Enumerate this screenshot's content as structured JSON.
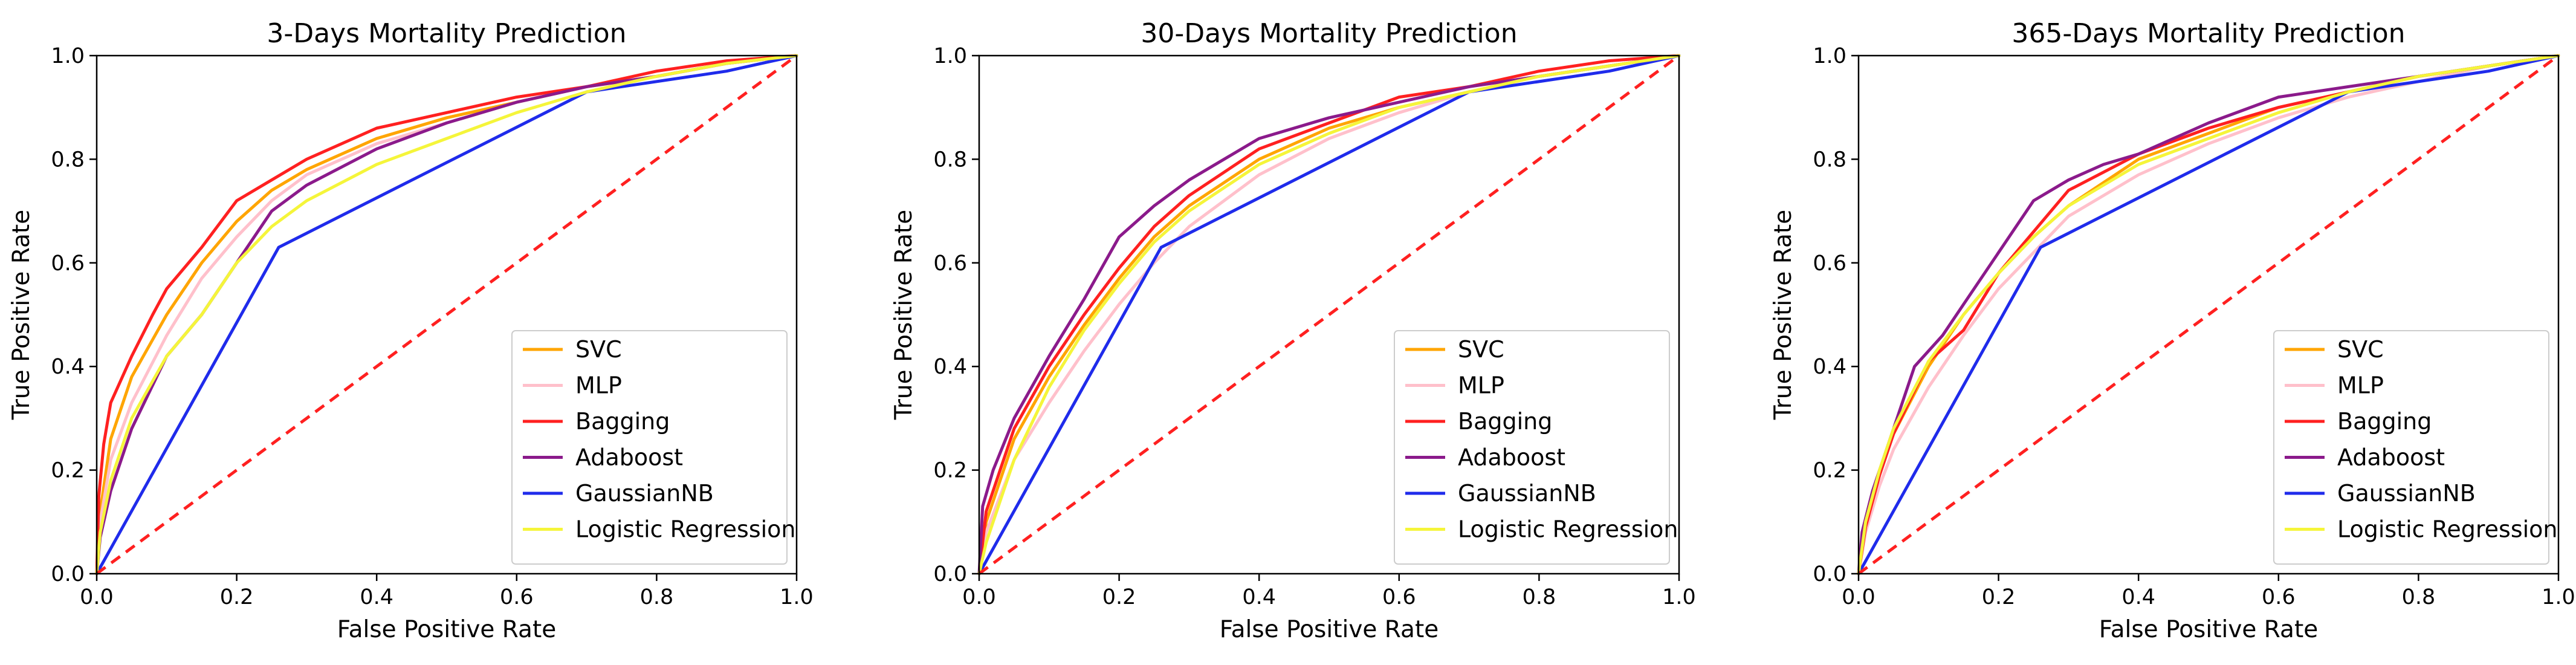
{
  "chart_data": [
    {
      "type": "line",
      "title": "3-Days Mortality Prediction",
      "xlabel": "False Positive Rate",
      "ylabel": "True Positive Rate",
      "xlim": [
        0,
        1
      ],
      "ylim": [
        0,
        1
      ],
      "xticks": [
        "0.0",
        "0.2",
        "0.4",
        "0.6",
        "0.8",
        "1.0"
      ],
      "yticks": [
        "0.0",
        "0.2",
        "0.4",
        "0.6",
        "0.8",
        "1.0"
      ],
      "grid": false,
      "legend_position": "bottom-right",
      "series": [
        {
          "name": "SVC",
          "color": "#FFA500",
          "x": [
            0,
            0.005,
            0.02,
            0.05,
            0.1,
            0.15,
            0.2,
            0.25,
            0.3,
            0.4,
            0.5,
            0.6,
            0.7,
            0.8,
            0.9,
            1.0
          ],
          "y": [
            0,
            0.12,
            0.26,
            0.38,
            0.5,
            0.6,
            0.68,
            0.74,
            0.78,
            0.84,
            0.88,
            0.91,
            0.94,
            0.96,
            0.985,
            1.0
          ]
        },
        {
          "name": "MLP",
          "color": "#FFC0CB",
          "x": [
            0,
            0.005,
            0.02,
            0.05,
            0.1,
            0.15,
            0.2,
            0.25,
            0.3,
            0.4,
            0.5,
            0.6,
            0.7,
            0.8,
            0.9,
            1.0
          ],
          "y": [
            0,
            0.1,
            0.22,
            0.33,
            0.46,
            0.57,
            0.65,
            0.72,
            0.77,
            0.83,
            0.87,
            0.91,
            0.94,
            0.96,
            0.985,
            1.0
          ]
        },
        {
          "name": "Bagging",
          "color": "#FF2020",
          "x": [
            0,
            0.003,
            0.01,
            0.02,
            0.05,
            0.08,
            0.1,
            0.15,
            0.2,
            0.25,
            0.3,
            0.4,
            0.5,
            0.6,
            0.7,
            0.8,
            0.9,
            1.0
          ],
          "y": [
            0,
            0.15,
            0.25,
            0.33,
            0.42,
            0.5,
            0.55,
            0.63,
            0.72,
            0.76,
            0.8,
            0.86,
            0.89,
            0.92,
            0.94,
            0.97,
            0.99,
            1.0
          ]
        },
        {
          "name": "Adaboost",
          "color": "#8B1A8B",
          "x": [
            0,
            0.005,
            0.02,
            0.05,
            0.1,
            0.15,
            0.2,
            0.25,
            0.3,
            0.4,
            0.5,
            0.6,
            0.7,
            0.8,
            0.9,
            1.0
          ],
          "y": [
            0,
            0.07,
            0.16,
            0.28,
            0.42,
            0.5,
            0.6,
            0.7,
            0.75,
            0.82,
            0.87,
            0.91,
            0.94,
            0.96,
            0.985,
            1.0
          ]
        },
        {
          "name": "GaussianNB",
          "color": "#1F2BEB",
          "x": [
            0,
            0.26,
            0.7,
            0.9,
            1.0
          ],
          "y": [
            0,
            0.63,
            0.93,
            0.97,
            1.0
          ]
        },
        {
          "name": "Logistic Regression",
          "color": "#F5F53A",
          "x": [
            0,
            0.005,
            0.02,
            0.05,
            0.1,
            0.15,
            0.2,
            0.25,
            0.3,
            0.4,
            0.5,
            0.6,
            0.7,
            0.8,
            0.9,
            1.0
          ],
          "y": [
            0,
            0.08,
            0.18,
            0.3,
            0.42,
            0.5,
            0.6,
            0.67,
            0.72,
            0.79,
            0.84,
            0.89,
            0.93,
            0.96,
            0.985,
            1.0
          ]
        }
      ]
    },
    {
      "type": "line",
      "title": "30-Days Mortality Prediction",
      "xlabel": "False Positive Rate",
      "ylabel": "True Positive Rate",
      "xlim": [
        0,
        1
      ],
      "ylim": [
        0,
        1
      ],
      "xticks": [
        "0.0",
        "0.2",
        "0.4",
        "0.6",
        "0.8",
        "1.0"
      ],
      "yticks": [
        "0.0",
        "0.2",
        "0.4",
        "0.6",
        "0.8",
        "1.0"
      ],
      "grid": false,
      "legend_position": "bottom-right",
      "series": [
        {
          "name": "SVC",
          "color": "#FFA500",
          "x": [
            0,
            0.01,
            0.03,
            0.05,
            0.1,
            0.15,
            0.2,
            0.25,
            0.3,
            0.4,
            0.5,
            0.6,
            0.7,
            0.8,
            0.9,
            1.0
          ],
          "y": [
            0,
            0.1,
            0.18,
            0.26,
            0.38,
            0.48,
            0.57,
            0.65,
            0.71,
            0.8,
            0.86,
            0.9,
            0.93,
            0.96,
            0.98,
            1.0
          ]
        },
        {
          "name": "MLP",
          "color": "#FFC0CB",
          "x": [
            0,
            0.01,
            0.03,
            0.05,
            0.1,
            0.15,
            0.2,
            0.25,
            0.3,
            0.4,
            0.5,
            0.6,
            0.7,
            0.8,
            0.9,
            1.0
          ],
          "y": [
            0,
            0.08,
            0.15,
            0.22,
            0.33,
            0.43,
            0.52,
            0.6,
            0.67,
            0.77,
            0.84,
            0.89,
            0.93,
            0.96,
            0.98,
            1.0
          ]
        },
        {
          "name": "Bagging",
          "color": "#FF2020",
          "x": [
            0,
            0.01,
            0.03,
            0.05,
            0.1,
            0.15,
            0.2,
            0.25,
            0.3,
            0.4,
            0.5,
            0.6,
            0.7,
            0.8,
            0.9,
            1.0
          ],
          "y": [
            0,
            0.12,
            0.2,
            0.28,
            0.4,
            0.5,
            0.59,
            0.67,
            0.73,
            0.82,
            0.87,
            0.92,
            0.94,
            0.97,
            0.99,
            1.0
          ]
        },
        {
          "name": "Adaboost",
          "color": "#8B1A8B",
          "x": [
            0,
            0.005,
            0.02,
            0.05,
            0.1,
            0.15,
            0.2,
            0.25,
            0.3,
            0.4,
            0.5,
            0.6,
            0.7,
            0.8,
            0.9,
            1.0
          ],
          "y": [
            0,
            0.13,
            0.2,
            0.3,
            0.42,
            0.53,
            0.65,
            0.71,
            0.76,
            0.84,
            0.88,
            0.91,
            0.94,
            0.96,
            0.98,
            1.0
          ]
        },
        {
          "name": "GaussianNB",
          "color": "#1F2BEB",
          "x": [
            0,
            0.26,
            0.7,
            0.9,
            1.0
          ],
          "y": [
            0,
            0.63,
            0.93,
            0.97,
            1.0
          ]
        },
        {
          "name": "Logistic Regression",
          "color": "#F5F53A",
          "x": [
            0,
            0.01,
            0.03,
            0.05,
            0.1,
            0.15,
            0.2,
            0.25,
            0.3,
            0.4,
            0.5,
            0.6,
            0.7,
            0.8,
            0.9,
            1.0
          ],
          "y": [
            0,
            0.06,
            0.14,
            0.22,
            0.36,
            0.47,
            0.56,
            0.64,
            0.7,
            0.79,
            0.85,
            0.9,
            0.93,
            0.96,
            0.98,
            1.0
          ]
        }
      ]
    },
    {
      "type": "line",
      "title": "365-Days Mortality Prediction",
      "xlabel": "False Positive Rate",
      "ylabel": "True Positive Rate",
      "xlim": [
        0,
        1
      ],
      "ylim": [
        0,
        1
      ],
      "xticks": [
        "0.0",
        "0.2",
        "0.4",
        "0.6",
        "0.8",
        "1.0"
      ],
      "yticks": [
        "0.0",
        "0.2",
        "0.4",
        "0.6",
        "0.8",
        "1.0"
      ],
      "grid": false,
      "legend_position": "bottom-right",
      "series": [
        {
          "name": "SVC",
          "color": "#FFA500",
          "x": [
            0,
            0.01,
            0.03,
            0.05,
            0.1,
            0.15,
            0.2,
            0.25,
            0.3,
            0.4,
            0.5,
            0.6,
            0.7,
            0.8,
            0.9,
            1.0
          ],
          "y": [
            0,
            0.1,
            0.2,
            0.27,
            0.4,
            0.5,
            0.58,
            0.65,
            0.71,
            0.8,
            0.85,
            0.9,
            0.93,
            0.96,
            0.98,
            1.0
          ]
        },
        {
          "name": "MLP",
          "color": "#FFC0CB",
          "x": [
            0,
            0.01,
            0.03,
            0.05,
            0.1,
            0.15,
            0.2,
            0.25,
            0.3,
            0.4,
            0.5,
            0.6,
            0.7,
            0.8,
            0.9,
            1.0
          ],
          "y": [
            0,
            0.08,
            0.17,
            0.24,
            0.36,
            0.46,
            0.55,
            0.62,
            0.69,
            0.77,
            0.83,
            0.88,
            0.92,
            0.95,
            0.98,
            1.0
          ]
        },
        {
          "name": "Bagging",
          "color": "#FF2020",
          "x": [
            0,
            0.01,
            0.03,
            0.05,
            0.1,
            0.15,
            0.2,
            0.25,
            0.3,
            0.4,
            0.5,
            0.6,
            0.7,
            0.8,
            0.9,
            1.0
          ],
          "y": [
            0,
            0.09,
            0.19,
            0.27,
            0.41,
            0.47,
            0.58,
            0.66,
            0.74,
            0.81,
            0.86,
            0.9,
            0.93,
            0.96,
            0.98,
            1.0
          ]
        },
        {
          "name": "Adaboost",
          "color": "#8B1A8B",
          "x": [
            0,
            0.005,
            0.02,
            0.05,
            0.08,
            0.12,
            0.15,
            0.2,
            0.25,
            0.3,
            0.35,
            0.4,
            0.5,
            0.6,
            0.7,
            0.8,
            0.9,
            1.0
          ],
          "y": [
            0,
            0.08,
            0.16,
            0.28,
            0.4,
            0.46,
            0.52,
            0.62,
            0.72,
            0.76,
            0.79,
            0.81,
            0.87,
            0.92,
            0.94,
            0.96,
            0.98,
            1.0
          ]
        },
        {
          "name": "GaussianNB",
          "color": "#1F2BEB",
          "x": [
            0,
            0.26,
            0.7,
            0.9,
            1.0
          ],
          "y": [
            0,
            0.63,
            0.93,
            0.97,
            1.0
          ]
        },
        {
          "name": "Logistic Regression",
          "color": "#F5F53A",
          "x": [
            0,
            0.01,
            0.03,
            0.05,
            0.1,
            0.15,
            0.2,
            0.25,
            0.3,
            0.4,
            0.5,
            0.6,
            0.7,
            0.8,
            0.9,
            1.0
          ],
          "y": [
            0,
            0.1,
            0.2,
            0.28,
            0.41,
            0.5,
            0.58,
            0.65,
            0.71,
            0.79,
            0.84,
            0.89,
            0.93,
            0.96,
            0.98,
            1.0
          ]
        }
      ]
    }
  ],
  "reference_line": {
    "color": "#FF2020",
    "x": [
      0,
      1
    ],
    "y": [
      0,
      1
    ]
  }
}
